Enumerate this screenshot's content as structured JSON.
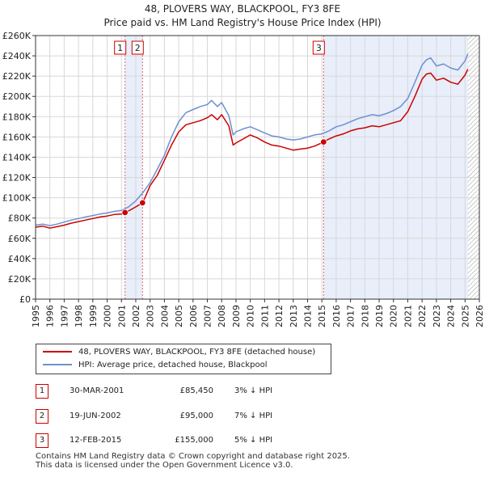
{
  "chart_data": {
    "type": "line",
    "title": "48, PLOVERS WAY, BLACKPOOL, FY3 8FE",
    "subtitle": "Price paid vs. HM Land Registry's House Price Index (HPI)",
    "xlabel": "",
    "ylabel": "",
    "xlim": [
      1995,
      2026
    ],
    "ylim": [
      0,
      260000
    ],
    "x_ticks": [
      "1995",
      "1996",
      "1997",
      "1998",
      "1999",
      "2000",
      "2001",
      "2002",
      "2003",
      "2004",
      "2005",
      "2006",
      "2007",
      "2008",
      "2009",
      "2010",
      "2011",
      "2012",
      "2013",
      "2014",
      "2015",
      "2016",
      "2017",
      "2018",
      "2019",
      "2020",
      "2021",
      "2022",
      "2023",
      "2024",
      "2025",
      "2026"
    ],
    "y_ticks": [
      {
        "value": 0,
        "label": "£0"
      },
      {
        "value": 20000,
        "label": "£20K"
      },
      {
        "value": 40000,
        "label": "£40K"
      },
      {
        "value": 60000,
        "label": "£60K"
      },
      {
        "value": 80000,
        "label": "£80K"
      },
      {
        "value": 100000,
        "label": "£100K"
      },
      {
        "value": 120000,
        "label": "£120K"
      },
      {
        "value": 140000,
        "label": "£140K"
      },
      {
        "value": 160000,
        "label": "£160K"
      },
      {
        "value": 180000,
        "label": "£180K"
      },
      {
        "value": 200000,
        "label": "£200K"
      },
      {
        "value": 220000,
        "label": "£220K"
      },
      {
        "value": 240000,
        "label": "£240K"
      },
      {
        "value": 260000,
        "label": "£260K"
      }
    ],
    "grid": true,
    "shaded_regions": [
      {
        "from": 2001.25,
        "to": 2002.47
      },
      {
        "from": 2015.12,
        "to": 2025.2
      }
    ],
    "hatched_region": {
      "from": 2025.2,
      "to": 2026
    },
    "series": [
      {
        "name": "48, PLOVERS WAY, BLACKPOOL, FY3 8FE (detached house)",
        "color": "#cc0000",
        "x": [
          1995,
          1995.5,
          1996,
          1996.5,
          1997,
          1997.5,
          1998,
          1998.5,
          1999,
          1999.5,
          2000,
          2000.5,
          2001,
          2001.25,
          2001.5,
          2002,
          2002.47,
          2002.7,
          2003,
          2003.5,
          2004,
          2004.5,
          2005,
          2005.5,
          2006,
          2006.5,
          2007,
          2007.3,
          2007.7,
          2008,
          2008.5,
          2008.8,
          2009,
          2009.5,
          2010,
          2010.5,
          2011,
          2011.5,
          2012,
          2012.5,
          2013,
          2013.5,
          2014,
          2014.5,
          2015.12,
          2015.5,
          2016,
          2016.5,
          2017,
          2017.5,
          2018,
          2018.5,
          2019,
          2019.5,
          2020,
          2020.5,
          2021,
          2021.5,
          2022,
          2022.3,
          2022.6,
          2023,
          2023.5,
          2024,
          2024.5,
          2025,
          2025.2
        ],
        "values": [
          71000,
          72000,
          70000,
          71500,
          73000,
          75000,
          76500,
          78000,
          79500,
          81000,
          82000,
          83500,
          84000,
          85450,
          87000,
          91000,
          95000,
          102000,
          112000,
          122000,
          137000,
          152000,
          165000,
          172000,
          174000,
          176000,
          179000,
          182000,
          177000,
          182000,
          171000,
          152000,
          154000,
          158000,
          162000,
          159000,
          155000,
          152000,
          151000,
          149000,
          147000,
          148000,
          149000,
          151000,
          155000,
          158000,
          161000,
          163000,
          166000,
          168000,
          169000,
          171000,
          170000,
          172000,
          174000,
          176000,
          185000,
          200000,
          217000,
          222000,
          223000,
          216000,
          218000,
          214000,
          212000,
          221000,
          227000
        ]
      },
      {
        "name": "HPI: Average price, detached house, Blackpool",
        "color": "#6f8fd0",
        "x": [
          1995,
          1995.5,
          1996,
          1996.5,
          1997,
          1997.5,
          1998,
          1998.5,
          1999,
          1999.5,
          2000,
          2000.5,
          2001,
          2001.5,
          2002,
          2002.5,
          2003,
          2003.5,
          2004,
          2004.5,
          2005,
          2005.5,
          2006,
          2006.5,
          2007,
          2007.3,
          2007.7,
          2008,
          2008.5,
          2008.8,
          2009,
          2009.5,
          2010,
          2010.5,
          2011,
          2011.5,
          2012,
          2012.5,
          2013,
          2013.5,
          2014,
          2014.5,
          2015,
          2015.5,
          2016,
          2016.5,
          2017,
          2017.5,
          2018,
          2018.5,
          2019,
          2019.5,
          2020,
          2020.5,
          2021,
          2021.5,
          2022,
          2022.3,
          2022.6,
          2023,
          2023.5,
          2024,
          2024.5,
          2025,
          2025.2
        ],
        "values": [
          73000,
          74000,
          72500,
          74000,
          76000,
          78000,
          79500,
          81000,
          82500,
          84000,
          85000,
          86500,
          87500,
          91000,
          97000,
          105000,
          115000,
          128000,
          142000,
          160000,
          175000,
          184000,
          187000,
          190000,
          192000,
          196000,
          190000,
          194000,
          181000,
          162000,
          165000,
          168000,
          170000,
          167000,
          164000,
          161000,
          160000,
          158000,
          157000,
          158000,
          160000,
          162000,
          163000,
          166000,
          170000,
          172000,
          175000,
          178000,
          180000,
          182000,
          181000,
          183000,
          186000,
          190000,
          198000,
          214000,
          231000,
          236000,
          238000,
          230000,
          232000,
          228000,
          226000,
          235000,
          242000
        ]
      }
    ],
    "sales": [
      {
        "num": "1",
        "x": 2001.25,
        "value": 85450
      },
      {
        "num": "2",
        "x": 2002.47,
        "value": 95000
      },
      {
        "num": "3",
        "x": 2015.12,
        "value": 155000
      }
    ]
  },
  "legend": {
    "property_label": "48, PLOVERS WAY, BLACKPOOL, FY3 8FE (detached house)",
    "hpi_label": "HPI: Average price, detached house, Blackpool"
  },
  "sales_table": [
    {
      "num": "1",
      "date": "30-MAR-2001",
      "price": "£85,450",
      "hpi": "3% ↓ HPI"
    },
    {
      "num": "2",
      "date": "19-JUN-2002",
      "price": "£95,000",
      "hpi": "7% ↓ HPI"
    },
    {
      "num": "3",
      "date": "12-FEB-2015",
      "price": "£155,000",
      "hpi": "5% ↓ HPI"
    }
  ],
  "footer": {
    "line1": "Contains HM Land Registry data © Crown copyright and database right 2025.",
    "line2": "This data is licensed under the Open Government Licence v3.0."
  },
  "colors": {
    "property": "#cc0000",
    "hpi": "#6f8fd0",
    "shade": "#e8eefa",
    "grid": "#d8d8d8",
    "marker_border": "#cc0000"
  }
}
